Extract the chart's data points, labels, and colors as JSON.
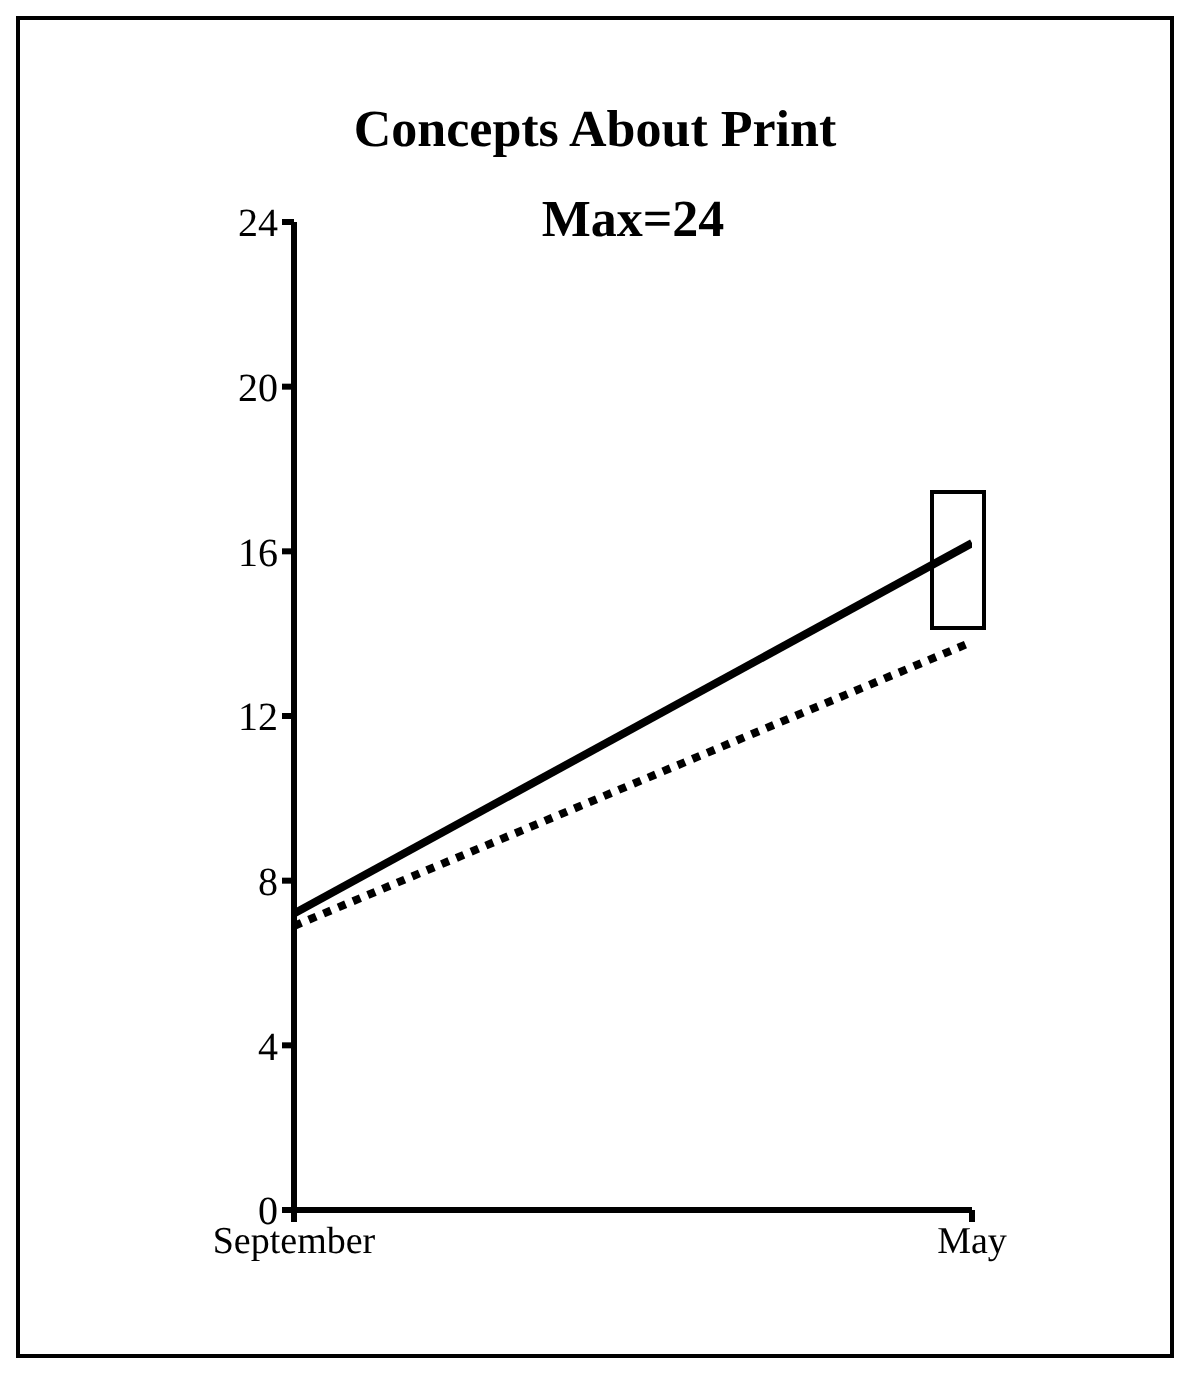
{
  "chart_data": {
    "type": "line",
    "title": "Concepts About Print",
    "subtitle": "Max=24",
    "categories": [
      "September",
      "May"
    ],
    "series": [
      {
        "color": "#000000",
        "values": [
          7.2,
          16.2
        ],
        "line_style": "solid"
      },
      {
        "color": "#000000",
        "values": [
          6.9,
          13.8
        ],
        "line_style": "dotted"
      }
    ],
    "ylim": [
      0,
      24
    ],
    "yticks": [
      0,
      4,
      8,
      12,
      16,
      20,
      24
    ],
    "grid": false,
    "marker": "none"
  }
}
